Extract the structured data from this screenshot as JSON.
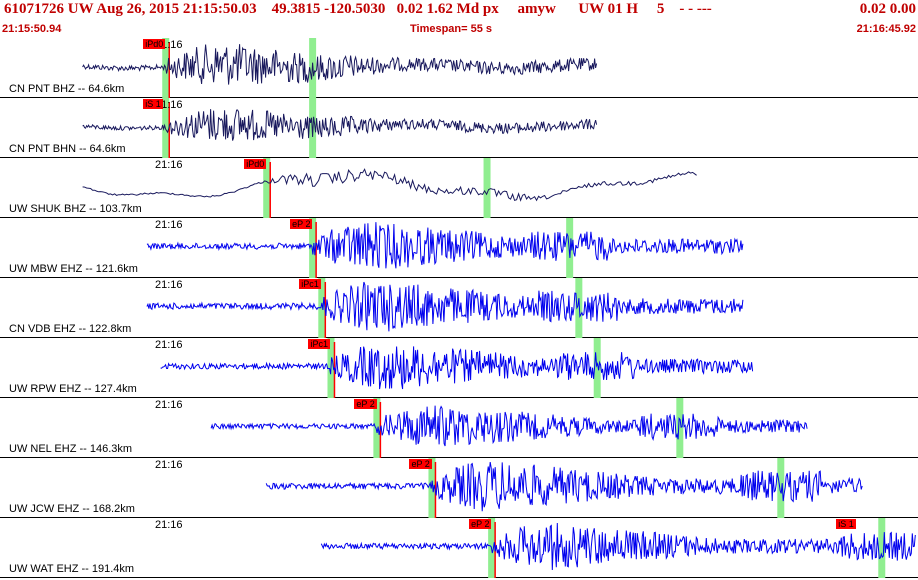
{
  "header": {
    "event_id": "61071726",
    "network": "UW",
    "datetime": "Aug 26, 2015 21:15:50.03",
    "lat": "49.3815",
    "lon": "-120.5030",
    "depth": "0.02",
    "mag": "1.62",
    "mag_type": "Md",
    "event_type": "px",
    "analyst": "amyw",
    "source": "UW 01 H",
    "quality": "5",
    "dashes": "- - ---",
    "right_values": "0.02 0.00",
    "start_time": "21:15:50.94",
    "timespan": "Timespan=  55 s",
    "end_time": "21:16:45.92"
  },
  "colors": {
    "header_text": "#c00000",
    "trace_short_period": "#0000ee",
    "trace_broadband": "#1a1a5e",
    "pick_box": "#ff0000",
    "pick_marker": "#90ee90",
    "pick_line": "#ff0000"
  },
  "panels": [
    {
      "label": "CN PNT BHZ -- 64.6km",
      "time": "21:16",
      "pick": "iPd0",
      "type": "broadband",
      "amp": 22,
      "start": 0.09,
      "end": 0.65,
      "p": 0.18,
      "s": 0.34
    },
    {
      "label": "CN PNT BHN -- 64.6km",
      "time": "21:16",
      "pick": "iS 1",
      "type": "broadband",
      "amp": 18,
      "start": 0.09,
      "end": 0.65,
      "p": 0.18,
      "s": 0.34
    },
    {
      "label": "UW SHUK BHZ -- 103.7km",
      "time": "21:16",
      "pick": "iPd0",
      "type": "long",
      "amp": 20,
      "start": 0.09,
      "end": 0.76,
      "p": 0.29,
      "s": 0.53
    },
    {
      "label": "UW MBW EHZ -- 121.6km",
      "time": "21:16",
      "pick": "eP 2",
      "type": "short",
      "amp": 25,
      "start": 0.16,
      "end": 0.81,
      "p": 0.34,
      "s": 0.62
    },
    {
      "label": "CN VDB EHZ -- 122.8km",
      "time": "21:16",
      "pick": "iPc1",
      "type": "short",
      "amp": 26,
      "start": 0.16,
      "end": 0.81,
      "p": 0.35,
      "s": 0.63
    },
    {
      "label": "UW RPW EHZ -- 127.4km",
      "time": "21:16",
      "pick": "iPc1",
      "type": "short",
      "amp": 24,
      "start": 0.175,
      "end": 0.82,
      "p": 0.36,
      "s": 0.65
    },
    {
      "label": "UW NEL EHZ -- 146.3km",
      "time": "21:16",
      "pick": "eP 2",
      "type": "short",
      "amp": 22,
      "start": 0.23,
      "end": 0.88,
      "p": 0.41,
      "s": 0.74
    },
    {
      "label": "UW JCW EHZ -- 168.2km",
      "time": "21:16",
      "pick": "eP 2",
      "type": "short",
      "amp": 26,
      "start": 0.29,
      "end": 0.94,
      "p": 0.47,
      "s": 0.85
    },
    {
      "label": "UW WAT EHZ -- 191.4km",
      "time": "21:16",
      "pick": "eP 2",
      "type": "short",
      "amp": 24,
      "start": 0.35,
      "end": 1.0,
      "p": 0.535,
      "s": 0.96,
      "pick2": "iS 1"
    }
  ]
}
